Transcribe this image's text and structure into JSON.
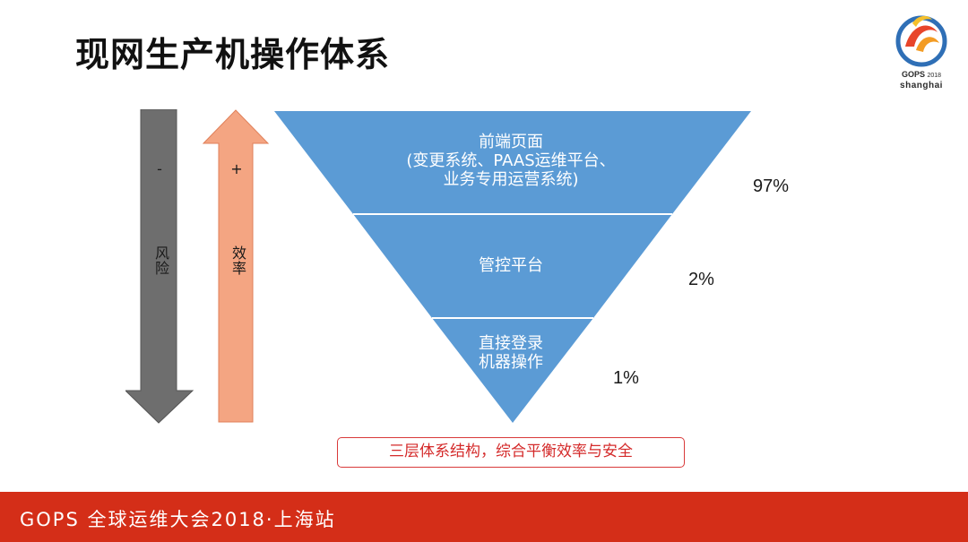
{
  "slide": {
    "title": "现网生产机操作体系"
  },
  "logo": {
    "brand": "GOPS",
    "year": "2018",
    "city": "shanghai"
  },
  "arrows": {
    "risk": {
      "sign": "-",
      "label": "风险",
      "color": "#6e6e6e"
    },
    "efficiency": {
      "sign": "+",
      "label": "效率",
      "color": "#f4a582"
    }
  },
  "pyramid": {
    "color": "#5b9bd5",
    "tiers": [
      {
        "lines": [
          "前端页面",
          "(变更系统、PAAS运维平台、",
          "业务专用运营系统)"
        ],
        "percent": "97%"
      },
      {
        "lines": [
          "管控平台"
        ],
        "percent": "2%"
      },
      {
        "lines": [
          "直接登录",
          "机器操作"
        ],
        "percent": "1%"
      }
    ]
  },
  "note": "三层体系结构，综合平衡效率与安全",
  "footer": {
    "text": "GOPS 全球运维大会2018·上海站",
    "color": "#d42e18"
  }
}
